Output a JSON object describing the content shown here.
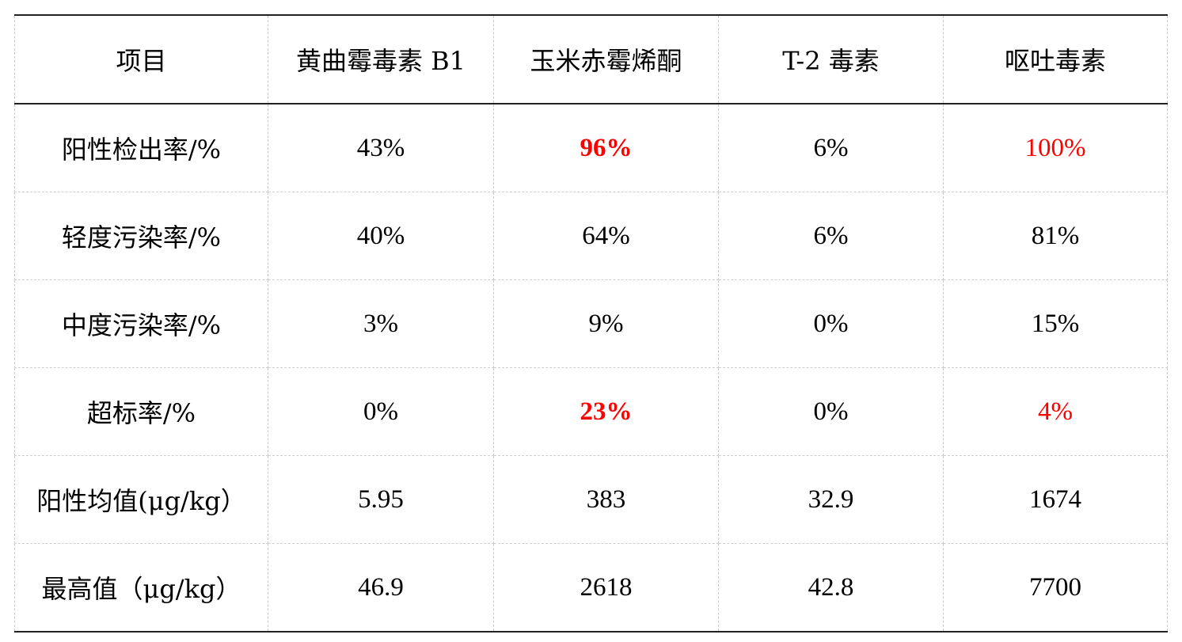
{
  "table": {
    "headers": [
      "项目",
      "黄曲霉毒素 B1",
      "玉米赤霉烯酮",
      "T-2 毒素",
      "呕吐毒素"
    ],
    "rows": [
      {
        "label": "阳性检出率/%",
        "values": [
          "43%",
          "96%",
          "6%",
          "100%"
        ]
      },
      {
        "label": "轻度污染率/%",
        "values": [
          "40%",
          "64%",
          "6%",
          "81%"
        ]
      },
      {
        "label": "中度污染率/%",
        "values": [
          "3%",
          "9%",
          "0%",
          "15%"
        ]
      },
      {
        "label": "超标率/%",
        "values": [
          "0%",
          "23%",
          "0%",
          "4%"
        ]
      },
      {
        "label": "阳性均值(μg/kg）",
        "values": [
          "5.95",
          "383",
          "32.9",
          "1674"
        ]
      },
      {
        "label": "最高值（μg/kg）",
        "values": [
          "46.9",
          "2618",
          "42.8",
          "7700"
        ]
      }
    ]
  },
  "highlight_color": "#ff0000"
}
